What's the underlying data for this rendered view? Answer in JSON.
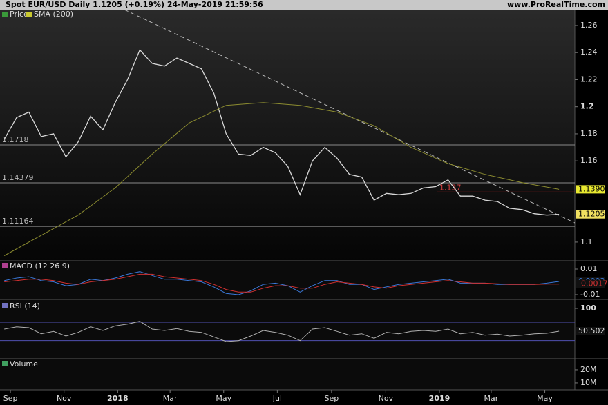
{
  "header": {
    "title": "Spot EUR/USD Daily 1.1205 (+0.19%) 24-May-2019 21:59:56",
    "site": "www.ProRealTime.com"
  },
  "chart_data": [
    {
      "type": "line",
      "legend": [
        "Price",
        "SMA (200)"
      ],
      "x": [
        -1,
        1,
        3,
        5,
        7,
        9,
        11,
        13,
        15,
        17,
        19,
        21,
        23,
        25,
        27,
        29,
        31,
        33,
        35,
        37,
        39,
        41,
        43,
        45,
        47,
        49,
        51,
        53,
        55,
        57,
        59,
        61,
        63,
        65,
        67,
        69,
        71,
        73,
        75,
        77,
        79,
        81,
        83,
        85,
        87,
        89
      ],
      "xlim": [
        -1.69,
        91.57
      ],
      "xticks": [
        {
          "value": 0,
          "label": "Sep"
        },
        {
          "value": 8.7,
          "label": "Nov"
        },
        {
          "value": 17.4,
          "label": "2018"
        },
        {
          "value": 25.9,
          "label": "Mar"
        },
        {
          "value": 34.6,
          "label": "May"
        },
        {
          "value": 43.3,
          "label": "Jul"
        },
        {
          "value": 52.1,
          "label": "Sep"
        },
        {
          "value": 60.9,
          "label": "Nov"
        },
        {
          "value": 69.6,
          "label": "2019"
        },
        {
          "value": 78,
          "label": "Mar"
        },
        {
          "value": 86.7,
          "label": "May"
        }
      ],
      "ylim": [
        1.0862,
        1.2717
      ],
      "yticks": [
        1.26,
        1.24,
        1.22,
        1.2,
        1.18,
        1.16,
        1.1
      ],
      "hlines": [
        1.1718,
        1.14379,
        1.11164
      ],
      "red_hlines": [
        1.137
      ],
      "trendline": {
        "x": [
          18.5,
          92
        ],
        "values": [
          1.2717,
          1.1133
        ]
      },
      "series": [
        {
          "name": "Price",
          "color": "#d8d8d8",
          "values": [
            1.176,
            1.192,
            1.196,
            1.178,
            1.18,
            1.163,
            1.174,
            1.193,
            1.183,
            1.203,
            1.22,
            1.242,
            1.232,
            1.23,
            1.236,
            1.232,
            1.228,
            1.21,
            1.18,
            1.165,
            1.164,
            1.17,
            1.166,
            1.156,
            1.135,
            1.16,
            1.17,
            1.162,
            1.15,
            1.148,
            1.131,
            1.136,
            1.135,
            1.136,
            1.14,
            1.141,
            1.146,
            1.134,
            1.134,
            1.131,
            1.13,
            1.125,
            1.124,
            1.121,
            1.12,
            1.1205
          ]
        },
        {
          "name": "SMA (200)",
          "color": "#8c8c30",
          "x": [
            -1,
            5,
            11,
            17,
            23,
            29,
            35,
            41,
            47,
            53,
            59,
            65,
            71,
            77,
            83,
            89
          ],
          "values": [
            1.09,
            1.105,
            1.12,
            1.14,
            1.165,
            1.188,
            1.201,
            1.203,
            1.201,
            1.196,
            1.186,
            1.17,
            1.158,
            1.15,
            1.144,
            1.139
          ],
          "tag": {
            "value": 1.139,
            "label": "1.1390"
          }
        }
      ]
    },
    {
      "type": "line",
      "title": "MACD (12 26 9)",
      "ylim": [
        -0.0127,
        0.01649
      ],
      "yticks": [
        0.01,
        -0.01
      ],
      "series": [
        {
          "name": "MACD",
          "color": "#3a78d8",
          "values": [
            0.001,
            0.003,
            0.004,
            0.001,
            0,
            -0.003,
            -0.002,
            0.002,
            0.001,
            0.003,
            0.006,
            0.008,
            0.005,
            0.002,
            0.002,
            0.001,
            0,
            -0.004,
            -0.009,
            -0.01,
            -0.007,
            -0.002,
            -0.001,
            -0.003,
            -0.008,
            -0.003,
            0.001,
            0.001,
            -0.002,
            -0.002,
            -0.006,
            -0.004,
            -0.002,
            -0.001,
            0,
            0.001,
            0.002,
            -0.001,
            -0.001,
            -0.001,
            -0.002,
            -0.002,
            -0.002,
            -0.002,
            -0.001,
            0.0003
          ]
        },
        {
          "name": "Signal",
          "color": "#d03030",
          "values": [
            0,
            0.001,
            0.002,
            0.002,
            0.001,
            -0.001,
            -0.002,
            0,
            0.001,
            0.002,
            0.004,
            0.006,
            0.006,
            0.004,
            0.003,
            0.002,
            0.001,
            -0.002,
            -0.006,
            -0.008,
            -0.008,
            -0.005,
            -0.003,
            -0.003,
            -0.005,
            -0.005,
            -0.002,
            0,
            -0.001,
            -0.002,
            -0.004,
            -0.005,
            -0.003,
            -0.002,
            -0.001,
            0,
            0.001,
            0,
            -0.001,
            -0.001,
            -0.0015,
            -0.002,
            -0.002,
            -0.002,
            -0.0018,
            -0.0017
          ]
        }
      ]
    },
    {
      "type": "line",
      "title": "RSI (14)",
      "ylim": [
        -9.5,
        116.5
      ],
      "yticks": [
        100
      ],
      "levels": [
        70,
        30
      ],
      "series": [
        {
          "name": "RSI",
          "color": "#b0b0b0",
          "values": [
            55,
            60,
            58,
            45,
            50,
            40,
            48,
            60,
            52,
            62,
            66,
            72,
            55,
            52,
            56,
            50,
            48,
            38,
            28,
            30,
            40,
            52,
            48,
            42,
            30,
            55,
            58,
            50,
            42,
            45,
            35,
            48,
            45,
            50,
            52,
            50,
            55,
            45,
            48,
            42,
            44,
            40,
            42,
            45,
            46,
            50.502
          ]
        }
      ]
    },
    {
      "type": "volume",
      "title": "Volume",
      "ylim": [
        4700000,
        28400000
      ],
      "yticks": [
        {
          "value": 20000000,
          "label": "20M"
        },
        {
          "value": 10000000,
          "label": "10M"
        }
      ]
    }
  ]
}
